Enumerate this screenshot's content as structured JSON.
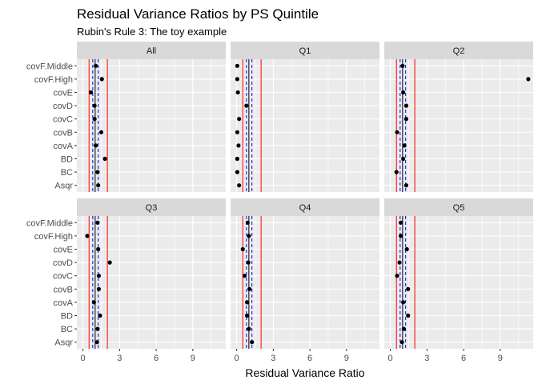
{
  "chart_data": {
    "type": "scatter",
    "title": "Residual Variance Ratios by PS Quintile",
    "subtitle": "Rubin's Rule 3: The toy example",
    "xlabel": "Residual Variance Ratio",
    "ylabel": "",
    "xlim": [
      -0.5,
      11.7
    ],
    "xticks": [
      0,
      3,
      6,
      9
    ],
    "grid": true,
    "categories": [
      "Asqr",
      "BC",
      "BD",
      "covA",
      "covB",
      "covC",
      "covD",
      "covE",
      "covF.High",
      "covF.Middle"
    ],
    "reference_lines": {
      "red_solid": [
        0.5,
        2.0
      ],
      "blue_dashed": [
        0.8,
        1.25
      ],
      "black_solid": [
        1.0
      ],
      "red_color": "#ff0000",
      "blue_color": "#0000ff",
      "black_color": "#000000"
    },
    "panels": [
      {
        "label": "All",
        "values": [
          1.25,
          1.2,
          1.8,
          1.05,
          1.5,
          0.95,
          0.95,
          0.65,
          1.55,
          1.05
        ]
      },
      {
        "label": "Q1",
        "values": [
          0.2,
          0.05,
          0.05,
          0.15,
          0.05,
          0.2,
          0.8,
          0.1,
          0.05,
          0.05
        ]
      },
      {
        "label": "Q2",
        "values": [
          1.3,
          0.5,
          1.05,
          1.15,
          0.55,
          1.3,
          1.3,
          1.05,
          11.3,
          1.0
        ]
      },
      {
        "label": "Q3",
        "values": [
          1.15,
          1.2,
          1.4,
          0.9,
          1.3,
          1.3,
          2.2,
          1.25,
          0.35,
          1.2
        ]
      },
      {
        "label": "Q4",
        "values": [
          1.25,
          1.0,
          0.85,
          0.85,
          1.05,
          0.65,
          0.95,
          0.5,
          1.0,
          0.9
        ]
      },
      {
        "label": "Q5",
        "values": [
          0.95,
          1.1,
          1.45,
          1.05,
          1.45,
          0.55,
          0.75,
          1.35,
          0.85,
          0.85
        ]
      }
    ]
  }
}
